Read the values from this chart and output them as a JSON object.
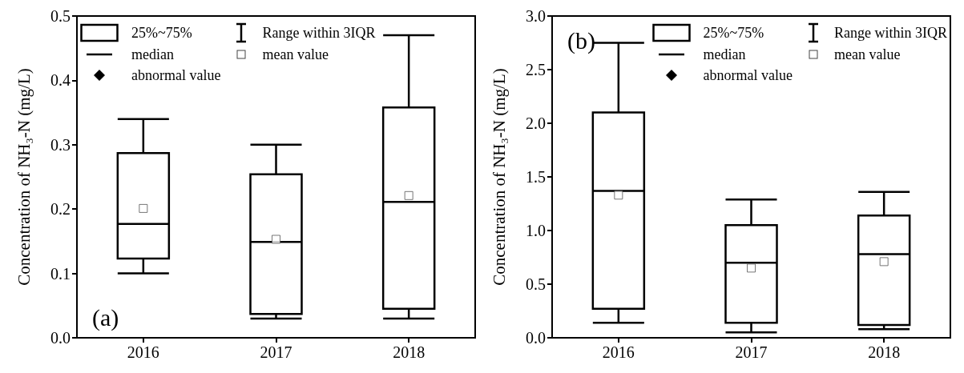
{
  "chart_data": [
    {
      "type": "box",
      "title": "(a)",
      "ylabel": "Concentration of NH₃-N (mg/L)",
      "categories": [
        "2016",
        "2017",
        "2018"
      ],
      "boxes": [
        {
          "low": 0.1,
          "q1": 0.123,
          "median": 0.177,
          "q3": 0.287,
          "high": 0.34,
          "mean": 0.201
        },
        {
          "low": 0.03,
          "q1": 0.037,
          "median": 0.149,
          "q3": 0.254,
          "high": 0.3,
          "mean": 0.153
        },
        {
          "low": 0.03,
          "q1": 0.045,
          "median": 0.211,
          "q3": 0.358,
          "high": 0.47,
          "mean": 0.221
        }
      ],
      "ylim": [
        0,
        0.5
      ],
      "yticks": [
        {
          "value": 0,
          "label": "0.0"
        },
        0.1,
        0.2,
        0.3,
        0.4,
        0.5
      ],
      "annotations": [
        "25%~75%",
        "Range within 3IQR",
        "median",
        "mean value",
        "abnormal value"
      ]
    },
    {
      "type": "box",
      "title": "(b)",
      "ylabel": "Concentration of NH₃-N (mg/L)",
      "categories": [
        "2016",
        "2017",
        "2018"
      ],
      "boxes": [
        {
          "low": 0.14,
          "q1": 0.27,
          "median": 1.37,
          "q3": 2.1,
          "high": 2.75,
          "mean": 1.33
        },
        {
          "low": 0.05,
          "q1": 0.14,
          "median": 0.7,
          "q3": 1.05,
          "high": 1.29,
          "mean": 0.65
        },
        {
          "low": 0.08,
          "q1": 0.12,
          "median": 0.78,
          "q3": 1.14,
          "high": 1.36,
          "mean": 0.71
        }
      ],
      "ylim": [
        0,
        3
      ],
      "yticks": [
        {
          "value": 0,
          "label": "0.0"
        },
        0.5,
        {
          "value": 1,
          "label": "1.0"
        },
        1.5,
        {
          "value": 2,
          "label": "2.0"
        },
        2.5,
        {
          "value": 3,
          "label": "3.0"
        }
      ],
      "annotations": [
        "25%~75%",
        "Range within 3IQR",
        "median",
        "mean value",
        "abnormal value"
      ]
    }
  ]
}
